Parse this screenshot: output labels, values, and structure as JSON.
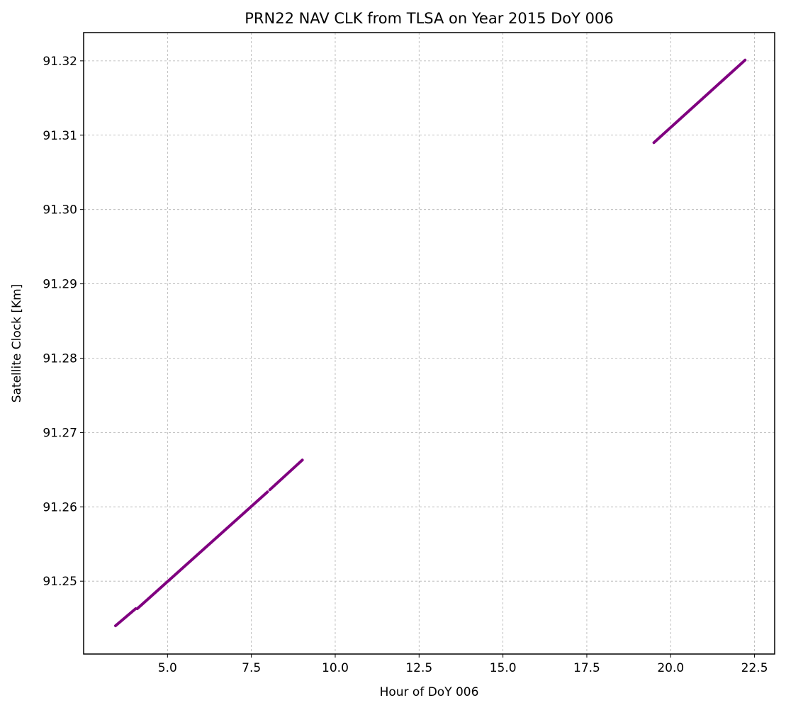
{
  "chart_data": {
    "type": "line",
    "title": "PRN22 NAV CLK from TLSA on Year 2015 DoY 006",
    "xlabel": "Hour of DoY 006",
    "ylabel": "Satellite Clock [Km]",
    "xlim": [
      2.5,
      23.1
    ],
    "ylim": [
      91.2402,
      91.3238
    ],
    "xticks": [
      5.0,
      7.5,
      10.0,
      12.5,
      15.0,
      17.5,
      20.0,
      22.5
    ],
    "xtick_labels": [
      "5.0",
      "7.5",
      "10.0",
      "12.5",
      "15.0",
      "17.5",
      "20.0",
      "22.5"
    ],
    "yticks": [
      91.25,
      91.26,
      91.27,
      91.28,
      91.29,
      91.3,
      91.31,
      91.32
    ],
    "ytick_labels": [
      "91.25",
      "91.26",
      "91.27",
      "91.28",
      "91.29",
      "91.30",
      "91.31",
      "91.32"
    ],
    "grid": true,
    "grid_style": "dashed",
    "series_color": "#800080",
    "segments": [
      {
        "x": [
          3.45,
          4.05
        ],
        "y": [
          91.244,
          91.2463
        ]
      },
      {
        "x": [
          4.1,
          7.98
        ],
        "y": [
          91.2463,
          91.262
        ]
      },
      {
        "x": [
          8.05,
          9.02
        ],
        "y": [
          91.2623,
          91.2663
        ]
      },
      {
        "x": [
          19.5,
          22.22
        ],
        "y": [
          91.309,
          91.3201
        ]
      }
    ]
  }
}
